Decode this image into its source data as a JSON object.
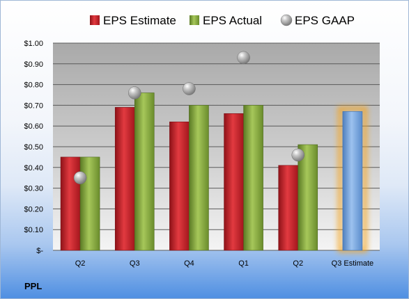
{
  "ticker": "PPL",
  "chart_data": {
    "type": "bar",
    "categories": [
      "Q2",
      "Q3",
      "Q4",
      "Q1",
      "Q2",
      "Q3 Estimate"
    ],
    "series": [
      {
        "name": "EPS Estimate",
        "color": "#c0202a",
        "values": [
          0.45,
          0.69,
          0.62,
          0.66,
          0.41,
          null
        ]
      },
      {
        "name": "EPS Actual",
        "color": "#7ea13b",
        "values": [
          0.45,
          0.76,
          0.7,
          0.7,
          0.51,
          null
        ]
      },
      {
        "name": "EPS GAAP",
        "color": "#a8a8a8",
        "marker": "sphere",
        "values": [
          0.35,
          0.76,
          0.78,
          0.93,
          0.46,
          null
        ]
      }
    ],
    "projection": {
      "category": "Q3 Estimate",
      "value": 0.67,
      "color": "#6e9fd8",
      "glow": "#f5a623"
    },
    "y_ticks": [
      "$-",
      "$0.10",
      "$0.20",
      "$0.30",
      "$0.40",
      "$0.50",
      "$0.60",
      "$0.70",
      "$0.80",
      "$0.90",
      "$1.00"
    ],
    "ylim": [
      0,
      1.0
    ],
    "grid": true,
    "legend_position": "top"
  }
}
